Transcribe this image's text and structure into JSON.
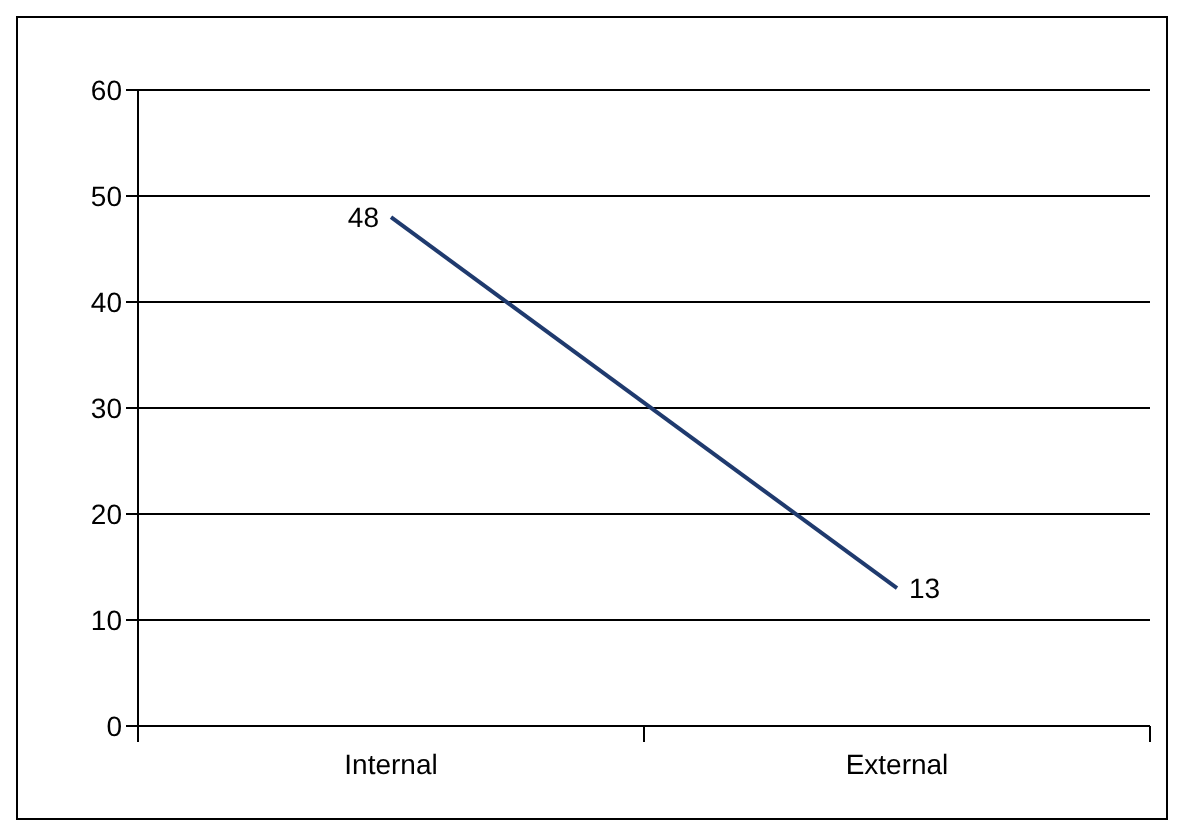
{
  "chart_data": {
    "type": "line",
    "categories": [
      "Internal",
      "External"
    ],
    "series": [
      {
        "color": "#1f3a6e",
        "values": [
          48,
          13
        ]
      }
    ],
    "ylim": [
      0,
      60
    ],
    "yticks": [
      0,
      10,
      20,
      30,
      40,
      50,
      60
    ],
    "grid": "y",
    "data_labels": true,
    "marker": "none",
    "line_style": "solid"
  }
}
